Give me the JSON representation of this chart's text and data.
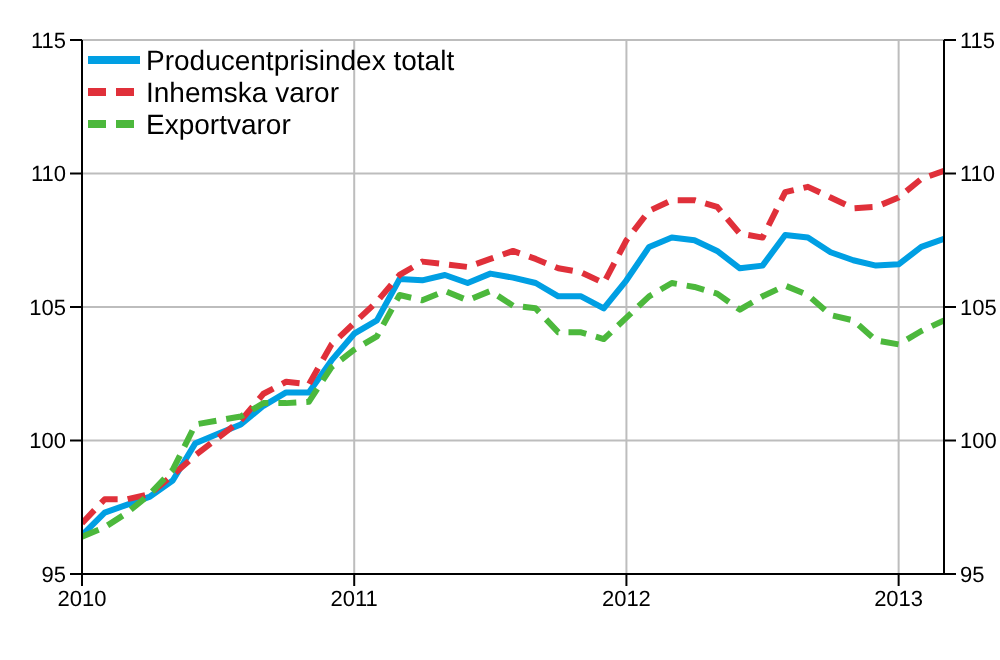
{
  "chart_data": {
    "type": "line",
    "x": [
      "2010-01",
      "2010-02",
      "2010-03",
      "2010-04",
      "2010-05",
      "2010-06",
      "2010-07",
      "2010-08",
      "2010-09",
      "2010-10",
      "2010-11",
      "2010-12",
      "2011-01",
      "2011-02",
      "2011-03",
      "2011-04",
      "2011-05",
      "2011-06",
      "2011-07",
      "2011-08",
      "2011-09",
      "2011-10",
      "2011-11",
      "2011-12",
      "2012-01",
      "2012-02",
      "2012-03",
      "2012-04",
      "2012-05",
      "2012-06",
      "2012-07",
      "2012-08",
      "2012-09",
      "2012-10",
      "2012-11",
      "2012-12",
      "2013-01",
      "2013-02",
      "2013-03"
    ],
    "series": [
      {
        "name": "Producentprisindex totalt",
        "color": "#009fe3",
        "line_style": "solid",
        "values": [
          96.45,
          97.3,
          97.6,
          97.9,
          98.5,
          99.9,
          100.25,
          100.6,
          101.3,
          101.8,
          101.8,
          103.0,
          104.0,
          104.5,
          106.05,
          106.0,
          106.2,
          105.9,
          106.25,
          106.1,
          105.9,
          105.4,
          105.4,
          104.95,
          106.0,
          107.25,
          107.6,
          107.5,
          107.1,
          106.45,
          106.55,
          107.7,
          107.6,
          107.05,
          106.75,
          106.55,
          106.6,
          107.25,
          107.55
        ]
      },
      {
        "name": "Inhemska varor",
        "color": "#e0303a",
        "line_style": "dashed",
        "values": [
          96.9,
          97.8,
          97.8,
          98.0,
          98.7,
          99.45,
          100.1,
          100.75,
          101.75,
          102.2,
          102.1,
          103.6,
          104.4,
          105.2,
          106.2,
          106.7,
          106.6,
          106.5,
          106.8,
          107.1,
          106.8,
          106.45,
          106.3,
          105.9,
          107.5,
          108.6,
          109.0,
          109.0,
          108.75,
          107.75,
          107.6,
          109.3,
          109.5,
          109.1,
          108.7,
          108.75,
          109.1,
          109.8,
          110.1
        ]
      },
      {
        "name": "Exportvaror",
        "color": "#4cb83c",
        "line_style": "dashed",
        "values": [
          96.4,
          96.75,
          97.3,
          98.0,
          98.9,
          100.6,
          100.75,
          100.9,
          101.4,
          101.4,
          101.45,
          102.75,
          103.4,
          103.9,
          105.45,
          105.25,
          105.6,
          105.25,
          105.6,
          105.05,
          104.95,
          104.05,
          104.05,
          103.8,
          104.6,
          105.4,
          105.9,
          105.75,
          105.5,
          104.9,
          105.4,
          105.8,
          105.45,
          104.7,
          104.5,
          103.75,
          103.6,
          104.1,
          104.5
        ]
      }
    ],
    "xlim": [
      "2010-01",
      "2013-03"
    ],
    "xticks": [
      "2010",
      "2011",
      "2012",
      "2013"
    ],
    "ylim": [
      95,
      115
    ],
    "yticks": [
      95,
      100,
      105,
      110,
      115
    ],
    "y2lim": [
      95,
      115
    ],
    "y2ticks": [
      95,
      100,
      105,
      110,
      115
    ],
    "grid": true,
    "legend": "top left",
    "marker": "none"
  }
}
